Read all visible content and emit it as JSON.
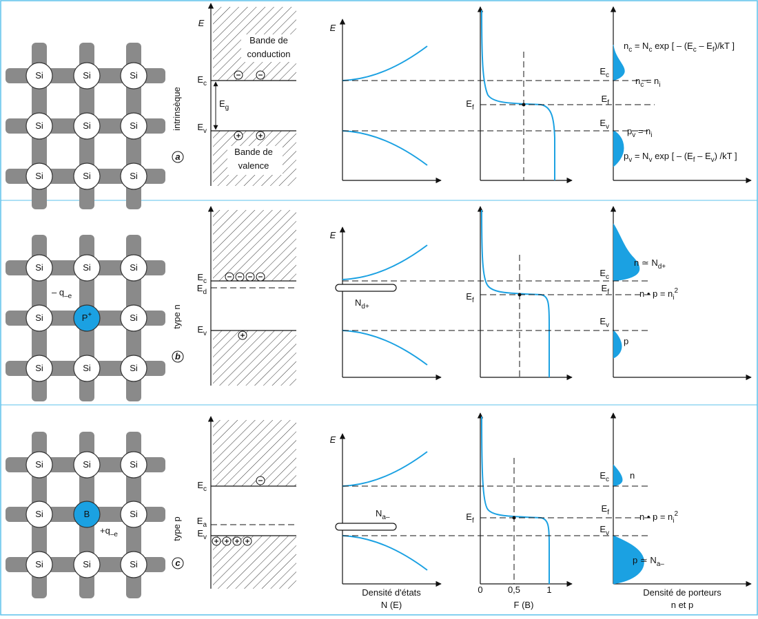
{
  "rows": [
    {
      "tag": "a",
      "name": "intrinsèque",
      "atoms": [
        "Si",
        "Si",
        "Si",
        "Si",
        "Si",
        "Si",
        "Si",
        "Si",
        "Si"
      ],
      "band": {
        "axis": "E",
        "conduction": [
          "Bande de",
          "conduction"
        ],
        "valence": [
          "Bande de",
          "valence"
        ],
        "levels": [
          [
            "E",
            {
              "sub": "c"
            }
          ],
          [
            "E",
            {
              "sub": "g"
            }
          ],
          [
            "E",
            {
              "sub": "v"
            }
          ]
        ]
      },
      "dos": {
        "axis": "E"
      },
      "fermi": {
        "level": [
          "E",
          {
            "sub": "f"
          }
        ]
      },
      "carriers": [
        [
          "n",
          {
            "sub": "c"
          },
          " = N",
          {
            "sub": "c"
          },
          " exp [ – (E",
          {
            "sub": "c"
          },
          " – E",
          {
            "sub": "f"
          },
          ")/kT ]"
        ],
        [
          "E",
          {
            "sub": "c"
          }
        ],
        [
          "n",
          {
            "sub": "c"
          },
          " = n",
          {
            "sub": "i"
          }
        ],
        [
          "E",
          {
            "sub": "f"
          }
        ],
        [
          "E",
          {
            "sub": "v"
          }
        ],
        [
          "p",
          {
            "sub": "v"
          },
          " = n",
          {
            "sub": "i"
          }
        ],
        [
          "p",
          {
            "sub": "v"
          },
          " = N",
          {
            "sub": "v"
          },
          " exp [ – (E",
          {
            "sub": "f"
          },
          " – E",
          {
            "sub": "v"
          },
          ") /kT ]"
        ]
      ]
    },
    {
      "tag": "b",
      "name": "type n",
      "atoms": [
        "Si",
        "Si",
        "Si",
        "Si",
        [
          "P",
          {
            "sup": "+"
          }
        ],
        "Si",
        "Si",
        "Si",
        "Si"
      ],
      "charge": [
        "– q",
        {
          "sub": "–e"
        }
      ],
      "band": {
        "levels": [
          [
            "E",
            {
              "sub": "c"
            }
          ],
          [
            "E",
            {
              "sub": "d"
            }
          ],
          [
            "E",
            {
              "sub": "v"
            }
          ]
        ]
      },
      "dos": {
        "axis": "E",
        "impurity": [
          "N",
          {
            "sub": "d+"
          }
        ]
      },
      "fermi": {
        "level": [
          "E",
          {
            "sub": "f"
          }
        ]
      },
      "carriers": [
        [
          "n ≃ N",
          {
            "sub": "d+"
          }
        ],
        [
          "E",
          {
            "sub": "c"
          }
        ],
        [
          "E",
          {
            "sub": "f"
          }
        ],
        [
          "n • p = n",
          {
            "sub": "i"
          },
          {
            "sup": "2"
          }
        ],
        [
          "E",
          {
            "sub": "v"
          }
        ],
        [
          "p"
        ]
      ]
    },
    {
      "tag": "c",
      "name": "type p",
      "atoms": [
        "Si",
        "Si",
        "Si",
        "Si",
        "B",
        "Si",
        "Si",
        "Si",
        "Si"
      ],
      "charge": [
        "+q",
        {
          "sub": "–e"
        }
      ],
      "band": {
        "levels": [
          [
            "E",
            {
              "sub": "c"
            }
          ],
          [
            "E",
            {
              "sub": "a"
            }
          ],
          [
            "E",
            {
              "sub": "v"
            }
          ]
        ]
      },
      "dos": {
        "axis": "E",
        "impurity": [
          "N",
          {
            "sub": "a–"
          }
        ]
      },
      "fermi": {
        "level": [
          "E",
          {
            "sub": "f"
          }
        ]
      },
      "carriers": [
        [
          "E",
          {
            "sub": "c"
          }
        ],
        [
          "n"
        ],
        [
          "E",
          {
            "sub": "f"
          }
        ],
        [
          "n • p = n",
          {
            "sub": "i"
          },
          {
            "sup": "2"
          }
        ],
        [
          "E",
          {
            "sub": "v"
          }
        ],
        [
          "p ≃ N",
          {
            "sub": "a–"
          }
        ]
      ]
    }
  ],
  "axes": {
    "dos_caption": [
      "Densité d'états",
      "N (E)"
    ],
    "fermi_ticks": [
      "0",
      "0,5",
      "1"
    ],
    "fermi_caption": "F (B)",
    "carriers_caption": [
      "Densité de porteurs",
      "n et p"
    ]
  }
}
